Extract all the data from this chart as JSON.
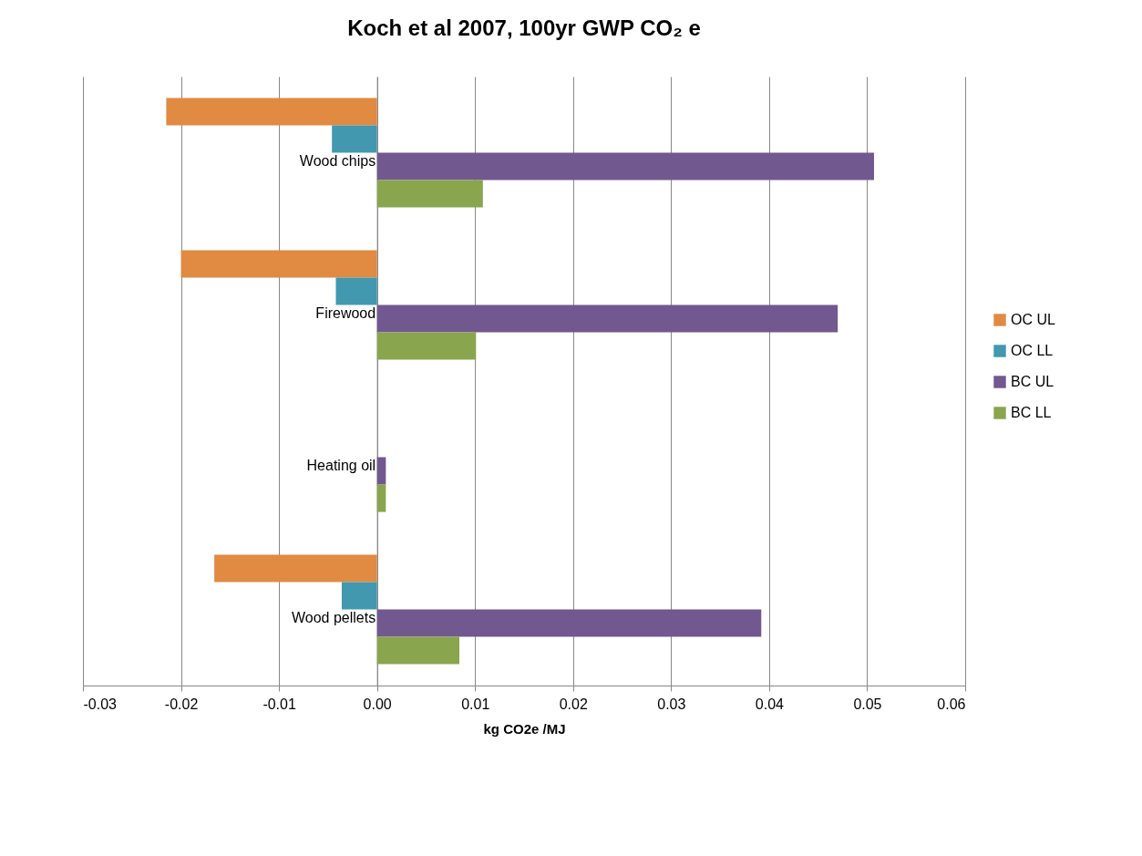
{
  "chart_data": {
    "type": "bar",
    "orientation": "horizontal",
    "title": "Koch et al 2007, 100yr GWP CO₂ e",
    "xlabel": "kg CO2e /MJ",
    "categories": [
      "Wood chips",
      "Firewood",
      "Heating oil",
      "Wood pellets"
    ],
    "series": [
      {
        "name": "OC UL",
        "color": "#e08a42",
        "values": [
          -0.0215,
          -0.02,
          0,
          -0.0166
        ]
      },
      {
        "name": "OC LL",
        "color": "#4198af",
        "values": [
          -0.0046,
          -0.0042,
          0,
          -0.0036
        ]
      },
      {
        "name": "BC UL",
        "color": "#71588f",
        "values": [
          0.0507,
          0.047,
          0.0009,
          0.0392
        ]
      },
      {
        "name": "BC LL",
        "color": "#89a54e",
        "values": [
          0.0108,
          0.0101,
          0.0009,
          0.0084
        ]
      }
    ],
    "xlim": [
      -0.03,
      0.06
    ],
    "xticks": [
      {
        "value": -0.03,
        "label": "-0.03"
      },
      {
        "value": -0.02,
        "label": "-0.02"
      },
      {
        "value": -0.01,
        "label": "-0.01"
      },
      {
        "value": 0,
        "label": "0.00"
      },
      {
        "value": 0.01,
        "label": "0.01"
      },
      {
        "value": 0.02,
        "label": "0.02"
      },
      {
        "value": 0.03,
        "label": "0.03"
      },
      {
        "value": 0.04,
        "label": "0.04"
      },
      {
        "value": 0.05,
        "label": "0.05"
      },
      {
        "value": 0.06,
        "label": "0.06"
      }
    ],
    "grid": "x",
    "legend": "right"
  }
}
